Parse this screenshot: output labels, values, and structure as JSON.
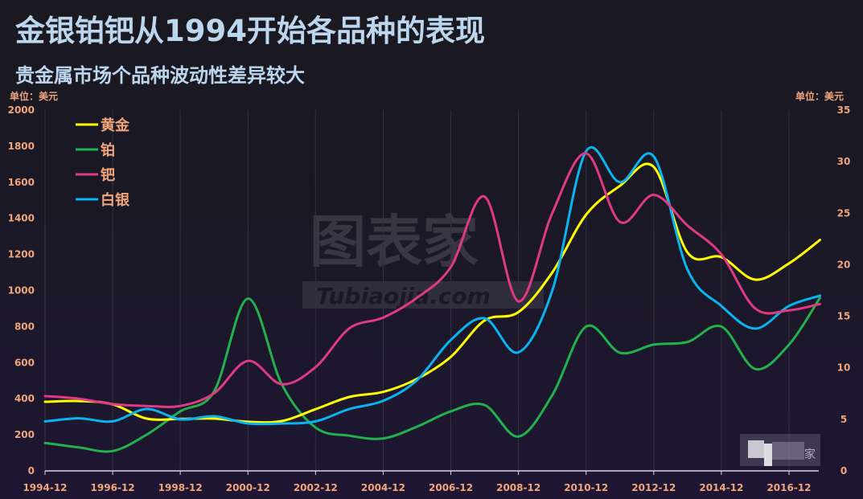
{
  "header": {
    "title": "金银铂钯从1994开始各品种的表现",
    "subtitle": "贵金属市场个品种波动性差异较大"
  },
  "axes": {
    "left_unit": "单位：美元",
    "right_unit": "单位：美元"
  },
  "watermark": {
    "main": "图表家",
    "sub": "Tubiaojia.com"
  },
  "colors": {
    "gold": "#ffff00",
    "platinum": "#22b14c",
    "palladium": "#e03a84",
    "silver": "#0ab4f0",
    "axis_text": "#f0a57a",
    "title": "#bcd6ee"
  },
  "chart_data": {
    "type": "line",
    "title": "金银铂钯从1994开始各品种的表现",
    "subtitle": "贵金属市场个品种波动性差异较大",
    "xlabel": "",
    "ylabel": "单位：美元",
    "y2label": "单位：美元",
    "ylim": [
      0,
      2000
    ],
    "y2lim": [
      0,
      35
    ],
    "yticks": [
      0,
      200,
      400,
      600,
      800,
      1000,
      1200,
      1400,
      1600,
      1800,
      2000
    ],
    "y2ticks": [
      0,
      5,
      10,
      15,
      20,
      25,
      30,
      35
    ],
    "x_tick_labels": [
      "1994-12",
      "1996-12",
      "1998-12",
      "2000-12",
      "2002-12",
      "2004-12",
      "2006-12",
      "2008-12",
      "2010-12",
      "2012-12",
      "2014-12",
      "2016-12"
    ],
    "x": [
      "1994-12",
      "1995-12",
      "1996-12",
      "1997-12",
      "1998-12",
      "1999-12",
      "2000-12",
      "2001-12",
      "2002-12",
      "2003-12",
      "2004-12",
      "2005-12",
      "2006-12",
      "2007-12",
      "2008-12",
      "2009-12",
      "2010-12",
      "2011-12",
      "2012-12",
      "2013-12",
      "2014-12",
      "2015-12",
      "2016-12",
      "2017-11"
    ],
    "grid": "vertical",
    "legend_position": "top-left",
    "series": [
      {
        "name": "黄金",
        "axis": "left",
        "values": [
          383,
          387,
          369,
          290,
          288,
          290,
          272,
          276,
          342,
          410,
          438,
          510,
          632,
          834,
          880,
          1100,
          1420,
          1580,
          1685,
          1210,
          1185,
          1060,
          1150,
          1280
        ]
      },
      {
        "name": "铂",
        "axis": "left",
        "values": [
          155,
          130,
          110,
          200,
          330,
          440,
          955,
          480,
          240,
          195,
          180,
          245,
          330,
          365,
          190,
          420,
          800,
          655,
          700,
          715,
          800,
          565,
          700,
          960
        ]
      },
      {
        "name": "钯",
        "axis": "left",
        "values": [
          415,
          400,
          370,
          360,
          360,
          430,
          610,
          480,
          575,
          790,
          850,
          960,
          1130,
          1520,
          940,
          1430,
          1760,
          1380,
          1530,
          1360,
          1200,
          900,
          890,
          925
        ]
      },
      {
        "name": "白银",
        "axis": "right",
        "values": [
          4.8,
          5.1,
          4.8,
          6.0,
          5.0,
          5.3,
          4.6,
          4.6,
          4.8,
          6.0,
          6.8,
          8.8,
          12.7,
          14.8,
          11.5,
          17.5,
          31.0,
          28.0,
          30.5,
          19.5,
          16.0,
          13.8,
          16.0,
          17.0
        ]
      }
    ]
  },
  "legend": {
    "items": [
      {
        "label": "黄金"
      },
      {
        "label": "铂"
      },
      {
        "label": "钯"
      },
      {
        "label": "白银"
      }
    ]
  }
}
